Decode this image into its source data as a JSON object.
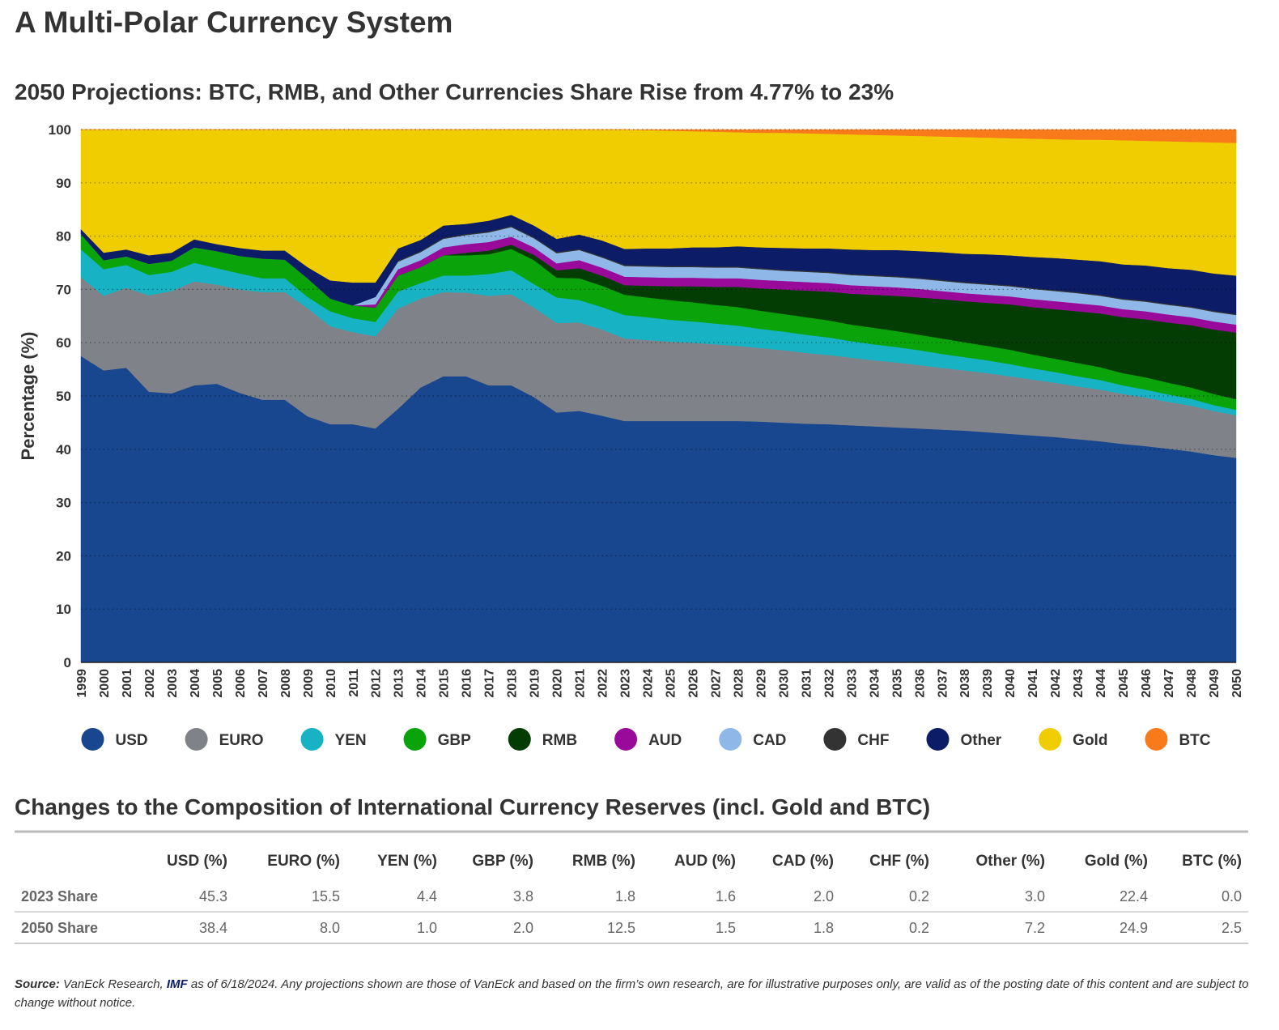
{
  "chart_data": {
    "type": "stacked-area",
    "title": "A Multi-Polar Currency System",
    "subtitle": "2050 Projections: BTC, RMB, and Other Currencies Share Rise from 4.77% to 23%",
    "y_label": "Percentage (%)",
    "categories": [
      "1999",
      "2000",
      "2001",
      "2002",
      "2003",
      "2004",
      "2005",
      "2006",
      "2007",
      "2008",
      "2009",
      "2010",
      "2011",
      "2012",
      "2013",
      "2014",
      "2015",
      "2016",
      "2017",
      "2018",
      "2019",
      "2020",
      "2021",
      "2022",
      "2023",
      "2024",
      "2025",
      "2026",
      "2027",
      "2028",
      "2029",
      "2030",
      "2031",
      "2032",
      "2033",
      "2034",
      "2035",
      "2036",
      "2037",
      "2038",
      "2039",
      "2040",
      "2041",
      "2042",
      "2043",
      "2044",
      "2045",
      "2046",
      "2047",
      "2048",
      "2049",
      "2050"
    ],
    "ylim": [
      0,
      100
    ],
    "yticks": [
      0,
      10,
      20,
      30,
      40,
      50,
      60,
      70,
      80,
      90,
      100
    ],
    "grid": true,
    "series": [
      {
        "name": "USD",
        "color": "#18468f",
        "values": [
          57.5,
          54.8,
          55.3,
          50.8,
          50.5,
          52.0,
          52.3,
          50.6,
          49.3,
          49.3,
          46.2,
          44.7,
          44.7,
          43.9,
          47.6,
          51.6,
          53.7,
          53.7,
          52.0,
          52.0,
          49.8,
          46.9,
          47.2,
          46.3,
          45.3,
          45.3,
          45.3,
          45.3,
          45.3,
          45.3,
          45.2,
          45.0,
          44.8,
          44.7,
          44.5,
          44.3,
          44.1,
          43.9,
          43.7,
          43.5,
          43.2,
          42.9,
          42.6,
          42.3,
          41.9,
          41.5,
          41.0,
          40.6,
          40.1,
          39.6,
          38.9,
          38.4
        ]
      },
      {
        "name": "EURO",
        "color": "#7f8389",
        "values": [
          14.8,
          14.0,
          15.0,
          18.1,
          19.2,
          19.5,
          18.6,
          19.4,
          20.2,
          20.2,
          20.3,
          18.4,
          17.3,
          17.3,
          18.8,
          16.7,
          15.8,
          15.7,
          16.8,
          17.1,
          16.8,
          16.8,
          16.6,
          16.2,
          15.5,
          15.2,
          14.9,
          14.7,
          14.4,
          14.1,
          13.8,
          13.6,
          13.3,
          13.0,
          12.7,
          12.4,
          12.2,
          11.9,
          11.6,
          11.3,
          11.1,
          10.8,
          10.5,
          10.2,
          9.9,
          9.7,
          9.4,
          9.1,
          8.8,
          8.6,
          8.3,
          8.0
        ]
      },
      {
        "name": "YEN",
        "color": "#17b3c4",
        "values": [
          5.2,
          5.0,
          4.3,
          3.8,
          3.6,
          3.5,
          3.1,
          3.0,
          2.6,
          2.6,
          2.1,
          2.8,
          2.6,
          2.7,
          3.2,
          2.9,
          3.1,
          3.2,
          4.1,
          4.5,
          4.4,
          4.8,
          4.2,
          4.2,
          4.4,
          4.3,
          4.1,
          4.0,
          3.9,
          3.8,
          3.6,
          3.5,
          3.4,
          3.3,
          3.1,
          3.0,
          2.9,
          2.8,
          2.6,
          2.5,
          2.4,
          2.3,
          2.1,
          2.0,
          1.9,
          1.8,
          1.6,
          1.5,
          1.4,
          1.3,
          1.1,
          1.0
        ]
      },
      {
        "name": "GBP",
        "color": "#0aa30a",
        "values": [
          2.9,
          1.7,
          1.6,
          2.1,
          2.1,
          2.9,
          3.2,
          3.3,
          3.7,
          3.5,
          3.5,
          2.4,
          2.4,
          2.7,
          3.0,
          3.0,
          3.8,
          3.8,
          3.7,
          4.0,
          4.5,
          3.7,
          4.1,
          4.0,
          3.8,
          3.7,
          3.7,
          3.6,
          3.5,
          3.5,
          3.4,
          3.3,
          3.3,
          3.2,
          3.1,
          3.1,
          3.0,
          2.9,
          2.9,
          2.8,
          2.7,
          2.7,
          2.6,
          2.5,
          2.5,
          2.4,
          2.3,
          2.3,
          2.2,
          2.1,
          2.1,
          2.0
        ]
      },
      {
        "name": "RMB",
        "color": "#043d04",
        "values": [
          0,
          0,
          0,
          0,
          0,
          0,
          0,
          0,
          0,
          0,
          0,
          0,
          0,
          0,
          0,
          0,
          0,
          0.5,
          0.7,
          0.8,
          1.0,
          1.4,
          1.9,
          1.9,
          1.8,
          2.2,
          2.6,
          3.0,
          3.4,
          3.8,
          4.2,
          4.6,
          5.0,
          5.4,
          5.8,
          6.2,
          6.6,
          7.0,
          7.4,
          7.7,
          8.1,
          8.5,
          8.9,
          9.3,
          9.7,
          10.1,
          10.5,
          10.9,
          11.3,
          11.7,
          12.1,
          12.5
        ]
      },
      {
        "name": "AUD",
        "color": "#9a0a9a",
        "values": [
          0,
          0,
          0,
          0,
          0,
          0,
          0,
          0,
          0,
          0,
          0,
          0,
          0,
          0.6,
          1.2,
          1.3,
          1.5,
          1.6,
          1.6,
          1.5,
          1.4,
          1.3,
          1.5,
          1.5,
          1.6,
          1.6,
          1.6,
          1.6,
          1.6,
          1.6,
          1.6,
          1.6,
          1.6,
          1.6,
          1.6,
          1.6,
          1.6,
          1.6,
          1.5,
          1.5,
          1.5,
          1.5,
          1.5,
          1.5,
          1.5,
          1.5,
          1.5,
          1.5,
          1.5,
          1.5,
          1.5,
          1.5
        ]
      },
      {
        "name": "CAD",
        "color": "#8fb8e8",
        "values": [
          0,
          0,
          0,
          0,
          0,
          0,
          0,
          0,
          0,
          0,
          0,
          0,
          0,
          1.4,
          1.4,
          1.5,
          1.6,
          1.7,
          1.8,
          1.8,
          1.7,
          1.9,
          1.9,
          1.9,
          2.0,
          2.0,
          2.0,
          2.0,
          2.0,
          2.0,
          2.0,
          1.9,
          1.9,
          1.9,
          1.9,
          1.9,
          1.9,
          1.9,
          1.9,
          1.9,
          1.9,
          1.9,
          1.9,
          1.9,
          1.9,
          1.8,
          1.8,
          1.8,
          1.8,
          1.8,
          1.8,
          1.8
        ]
      },
      {
        "name": "CHF",
        "color": "#333333",
        "values": [
          0,
          0,
          0,
          0,
          0,
          0,
          0,
          0,
          0,
          0,
          0,
          0,
          0,
          0,
          0.2,
          0.2,
          0.2,
          0.2,
          0.2,
          0.2,
          0.2,
          0.2,
          0.2,
          0.2,
          0.2,
          0.2,
          0.2,
          0.2,
          0.2,
          0.2,
          0.2,
          0.2,
          0.2,
          0.2,
          0.2,
          0.2,
          0.2,
          0.2,
          0.2,
          0.2,
          0.2,
          0.2,
          0.2,
          0.2,
          0.2,
          0.2,
          0.2,
          0.2,
          0.2,
          0.2,
          0.2,
          0.2
        ]
      },
      {
        "name": "Other",
        "color": "#0c1c66",
        "values": [
          0.9,
          1.4,
          1.3,
          1.6,
          1.5,
          1.5,
          1.3,
          1.5,
          1.5,
          1.7,
          2.1,
          3.4,
          4.3,
          2.7,
          2.3,
          2.1,
          2.3,
          1.9,
          2.0,
          2.1,
          2.2,
          2.5,
          2.7,
          3.0,
          3.0,
          3.2,
          3.3,
          3.5,
          3.6,
          3.8,
          3.9,
          4.1,
          4.2,
          4.4,
          4.6,
          4.7,
          4.9,
          5.0,
          5.2,
          5.3,
          5.5,
          5.6,
          5.8,
          6.0,
          6.1,
          6.3,
          6.4,
          6.6,
          6.7,
          6.9,
          7.0,
          7.2
        ]
      },
      {
        "name": "Gold",
        "color": "#f0cd00",
        "values": [
          18.7,
          23.1,
          22.5,
          23.6,
          23.1,
          20.6,
          21.5,
          22.2,
          22.7,
          22.7,
          25.8,
          28.3,
          28.7,
          28.7,
          22.3,
          20.7,
          18.0,
          17.7,
          17.1,
          16.0,
          18.0,
          20.5,
          19.7,
          20.8,
          22.4,
          22.2,
          22.1,
          21.8,
          21.7,
          21.4,
          21.5,
          21.6,
          21.6,
          21.5,
          21.6,
          21.6,
          21.5,
          21.6,
          21.7,
          21.9,
          21.9,
          22.0,
          22.2,
          22.3,
          22.5,
          22.8,
          23.3,
          23.4,
          23.8,
          24.0,
          24.6,
          24.9
        ]
      },
      {
        "name": "BTC",
        "color": "#f97a1a",
        "values": [
          0,
          0,
          0,
          0,
          0,
          0,
          0,
          0,
          0,
          0,
          0,
          0,
          0,
          0,
          0,
          0,
          0,
          0,
          0,
          0,
          0,
          0,
          0,
          0,
          0,
          0.1,
          0.2,
          0.3,
          0.4,
          0.5,
          0.6,
          0.6,
          0.7,
          0.8,
          0.9,
          1.0,
          1.1,
          1.2,
          1.3,
          1.4,
          1.5,
          1.6,
          1.7,
          1.8,
          1.9,
          1.9,
          2.0,
          2.1,
          2.2,
          2.3,
          2.4,
          2.5
        ]
      }
    ]
  },
  "table": {
    "title": "Changes to the Composition of International Currency Reserves (incl. Gold and BTC)",
    "columns": [
      "USD (%)",
      "EURO (%)",
      "YEN (%)",
      "GBP (%)",
      "RMB (%)",
      "AUD (%)",
      "CAD (%)",
      "CHF (%)",
      "Other (%)",
      "Gold (%)",
      "BTC (%)"
    ],
    "rows": [
      {
        "label": "2023 Share",
        "values": [
          "45.3",
          "15.5",
          "4.4",
          "3.8",
          "1.8",
          "1.6",
          "2.0",
          "0.2",
          "3.0",
          "22.4",
          "0.0"
        ]
      },
      {
        "label": "2050 Share",
        "values": [
          "38.4",
          "8.0",
          "1.0",
          "2.0",
          "12.5",
          "1.5",
          "1.8",
          "0.2",
          "7.2",
          "24.9",
          "2.5"
        ]
      }
    ]
  },
  "footer": {
    "label": "Source:",
    "text": "VanEck Research,",
    "link": "IMF",
    "rest": "as of 6/18/2024. Any projections shown are those of VanEck and based on the firm’s own research, are for illustrative purposes only, are valid as of the posting date of this content and are subject to change without notice."
  }
}
